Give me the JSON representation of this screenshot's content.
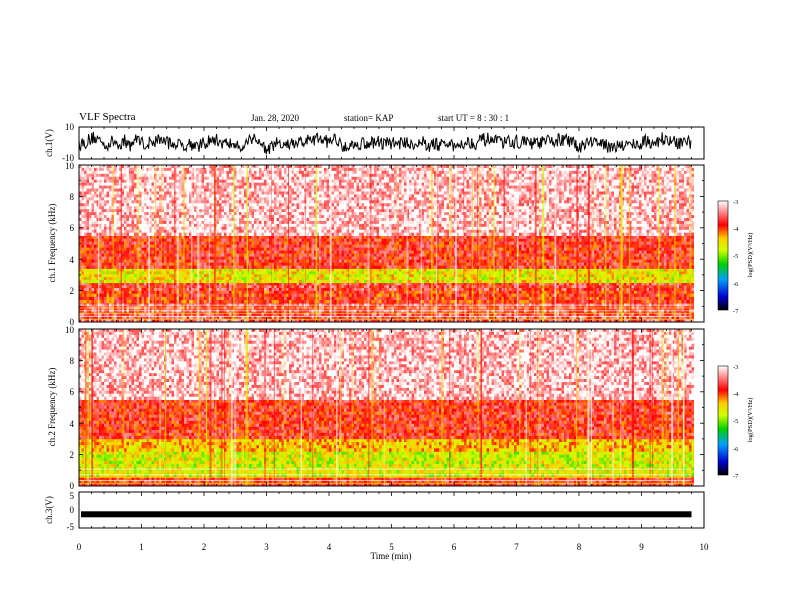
{
  "header": {
    "title": "VLF Spectra",
    "date": "Jan. 28, 2020",
    "station": "station= KAP",
    "start_ut": "start  UT  =   8  : 30 : 1"
  },
  "chart_data": [
    {
      "type": "line",
      "panel": "ch1-waveform",
      "ylabel": "ch.1(V)",
      "ylim": [
        -10,
        10
      ],
      "yticks": [
        "10",
        "-10"
      ],
      "xlim": [
        0,
        10
      ],
      "x_end": 9.8,
      "series": [
        {
          "values_summary": "noisy waveform between about -10 and 10 V"
        }
      ]
    },
    {
      "type": "heatmap",
      "panel": "ch1-spectrogram",
      "ylabel": "ch.1  Frequency  (kHz)",
      "ylim": [
        0,
        10
      ],
      "yticks": [
        "0",
        "2",
        "4",
        "6",
        "8",
        "10"
      ],
      "xlim": [
        0,
        10
      ],
      "bands": [
        {
          "from_khz": 0,
          "to_khz": 1.2,
          "level": -3.6
        },
        {
          "from_khz": 1.2,
          "to_khz": 2.0,
          "level": -3.9
        },
        {
          "from_khz": 2.0,
          "to_khz": 2.5,
          "level": -3.7
        },
        {
          "from_khz": 2.5,
          "to_khz": 3.4,
          "level": -4.6
        },
        {
          "from_khz": 3.4,
          "to_khz": 5.5,
          "level": -3.8
        },
        {
          "from_khz": 5.5,
          "to_khz": 10,
          "level": -3.2
        }
      ]
    },
    {
      "type": "heatmap",
      "panel": "ch2-spectrogram",
      "ylabel": "ch.2  Frequency  (kHz)",
      "ylim": [
        0,
        10
      ],
      "yticks": [
        "0",
        "2",
        "4",
        "6",
        "8",
        "10"
      ],
      "xlim": [
        0,
        10
      ],
      "bands": [
        {
          "from_khz": 0,
          "to_khz": 0.6,
          "level": -3.8
        },
        {
          "from_khz": 0.6,
          "to_khz": 2.2,
          "level": -4.7
        },
        {
          "from_khz": 2.2,
          "to_khz": 3.0,
          "level": -4.4
        },
        {
          "from_khz": 3.0,
          "to_khz": 5.5,
          "level": -3.8
        },
        {
          "from_khz": 5.5,
          "to_khz": 10,
          "level": -3.2
        }
      ]
    },
    {
      "type": "line",
      "panel": "ch3-waveform",
      "ylabel": "ch.3(V)",
      "ylim": [
        -5,
        5
      ],
      "yticks": [
        "5",
        "0",
        "-5"
      ],
      "xlim": [
        0,
        10
      ],
      "x_end": 9.8,
      "level": -1.2,
      "xlabel": "Time  (min)",
      "xticks": [
        "0",
        "1",
        "2",
        "3",
        "4",
        "5",
        "6",
        "7",
        "8",
        "9",
        "10"
      ]
    }
  ],
  "colorbars": [
    {
      "label": "log(PSD)(V²/Hz)",
      "range": [
        -7,
        -3
      ],
      "ticks": [
        "-3",
        "-4",
        "-5",
        "-6",
        "-7"
      ]
    },
    {
      "label": "log(PSD)(V²/Hz)",
      "range": [
        -7,
        -3
      ],
      "ticks": [
        "-3",
        "-4",
        "-5",
        "-6",
        "-7"
      ]
    }
  ]
}
